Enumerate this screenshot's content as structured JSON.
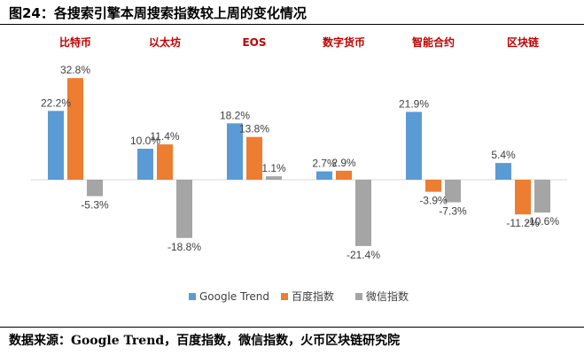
{
  "title": "图24：各搜索引擎本周搜索指数较上周的变化情况",
  "source": "数据来源：Google Trend，百度指数，微信指数，火币区块链研究院",
  "chart_data": {
    "type": "bar",
    "categories": [
      "比特币",
      "以太坊",
      "EOS",
      "数字货币",
      "智能合约",
      "区块链"
    ],
    "series": [
      {
        "name": "Google Trend",
        "color": "#5b9bd5",
        "values": [
          22.2,
          10.0,
          18.2,
          2.7,
          21.9,
          5.4
        ]
      },
      {
        "name": "百度指数",
        "color": "#ed7d31",
        "values": [
          32.8,
          11.4,
          13.8,
          2.9,
          -3.9,
          -11.2
        ]
      },
      {
        "name": "微信指数",
        "color": "#a5a5a5",
        "values": [
          -5.3,
          -18.8,
          1.1,
          -21.4,
          -7.3,
          -10.6
        ]
      }
    ],
    "data_labels": [
      [
        "22.2%",
        "32.8%",
        "-5.3%"
      ],
      [
        "10.0%",
        "11.4%",
        "-18.8%"
      ],
      [
        "18.2%",
        "13.8%",
        "1.1%"
      ],
      [
        "2.7%",
        "2.9%",
        "-21.4%"
      ],
      [
        "21.9%",
        "-3.9%",
        "-7.3%"
      ],
      [
        "5.4%",
        "-11.2%",
        "-10.6%"
      ]
    ],
    "legend_position": "bottom",
    "grid": false
  }
}
